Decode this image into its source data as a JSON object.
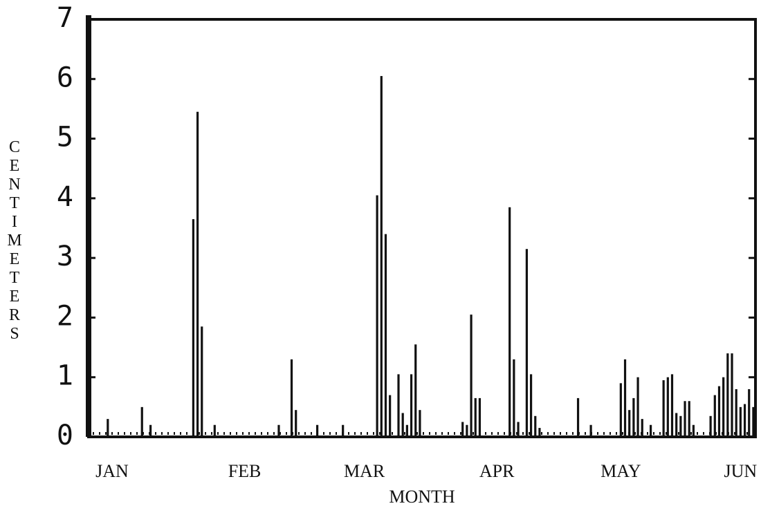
{
  "chart_data": {
    "type": "bar",
    "xlabel": "MONTH",
    "ylabel": "CENTIMETERS",
    "categories": [
      null,
      null,
      null,
      null,
      null,
      "JAN",
      null,
      null,
      null,
      null,
      null,
      null,
      null,
      null,
      null,
      null,
      null,
      null,
      null,
      null,
      null,
      null,
      null,
      null,
      null,
      null,
      null,
      null,
      null,
      null,
      null,
      null,
      null,
      null,
      null,
      null,
      "FEB",
      null,
      null,
      null,
      null,
      null,
      null,
      null,
      null,
      null,
      null,
      null,
      null,
      null,
      null,
      null,
      null,
      null,
      null,
      null,
      null,
      null,
      null,
      null,
      null,
      null,
      null,
      null,
      "MAR",
      null,
      null,
      null,
      null,
      null,
      null,
      null,
      null,
      null,
      null,
      null,
      null,
      null,
      null,
      null,
      null,
      null,
      null,
      null,
      null,
      null,
      null,
      null,
      null,
      null,
      null,
      null,
      null,
      null,
      null,
      "APR",
      null,
      null,
      null,
      null,
      null,
      null,
      null,
      null,
      null,
      null,
      null,
      null,
      null,
      null,
      null,
      null,
      null,
      null,
      null,
      null,
      null,
      null,
      null,
      null,
      null,
      null,
      null,
      null,
      "MAY",
      null,
      null,
      null,
      null,
      null,
      null,
      null,
      null,
      null,
      null,
      null,
      null,
      null,
      null,
      null,
      null,
      null,
      null,
      null,
      null,
      null,
      null,
      null,
      null,
      null,
      null,
      null,
      "JUN",
      null,
      null,
      null
    ],
    "values": [
      0,
      0,
      0,
      0,
      0.3,
      0,
      0,
      0,
      0,
      0,
      0,
      0,
      0.5,
      0,
      0.2,
      0,
      0,
      0,
      0,
      0,
      0,
      0,
      0,
      0,
      3.65,
      5.45,
      1.85,
      0,
      0,
      0.2,
      0,
      0,
      0,
      0,
      0,
      0,
      0,
      0,
      0,
      0,
      0,
      0,
      0,
      0,
      0.2,
      0,
      0,
      1.3,
      0.45,
      0,
      0,
      0,
      0,
      0.2,
      0,
      0,
      0,
      0,
      0,
      0.2,
      0,
      0,
      0,
      0,
      0,
      0,
      0,
      4.05,
      6.05,
      3.4,
      0.7,
      0,
      1.05,
      0.4,
      0.2,
      1.05,
      1.55,
      0.45,
      0,
      0,
      0,
      0,
      0,
      0,
      0,
      0,
      0,
      0.25,
      0.2,
      2.05,
      0.65,
      0.65,
      0,
      0,
      0,
      0,
      0,
      0,
      3.85,
      1.3,
      0.25,
      0,
      3.15,
      1.05,
      0.35,
      0.15,
      0,
      0,
      0,
      0,
      0,
      0,
      0,
      0,
      0.65,
      0,
      0,
      0.2,
      0,
      0,
      0,
      0,
      0,
      0,
      0.9,
      1.3,
      0.45,
      0.65,
      1.0,
      0.3,
      0,
      0.2,
      0,
      0,
      0.95,
      1.0,
      1.05,
      0.4,
      0.35,
      0.6,
      0.6,
      0.2,
      0,
      0,
      0,
      0.35,
      0.7,
      0.85,
      1.0,
      1.4,
      1.4,
      0.8,
      0.5,
      0.55,
      0.8,
      0.5
    ],
    "color": "#111111",
    "ylim": [
      0,
      7
    ],
    "yticks": [
      0,
      1,
      2,
      3,
      4,
      5,
      6,
      7
    ],
    "grid": false
  }
}
